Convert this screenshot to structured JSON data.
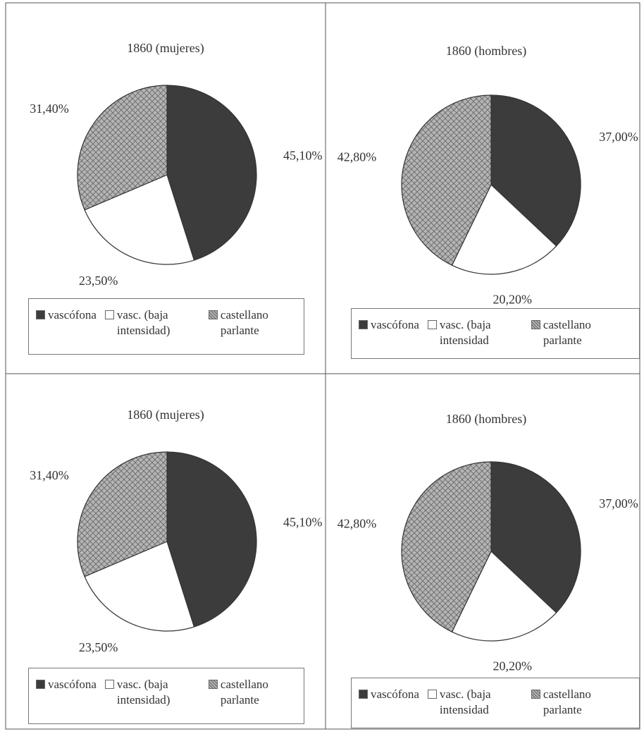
{
  "chart_data": [
    {
      "type": "pie",
      "title": "1860 (mujeres)",
      "categories": [
        "vascófona",
        "vasc. (baja intensidad)",
        "castellano parlante"
      ],
      "values": [
        45.1,
        23.5,
        31.4
      ],
      "value_labels": [
        "45,10%",
        "23,50%",
        "31,40%"
      ],
      "colors": [
        "#3c3c3c",
        "#ffffff",
        "#b4b4b4"
      ]
    },
    {
      "type": "pie",
      "title": "1860 (hombres)",
      "categories": [
        "vascófona",
        "vasc. (baja intensidad",
        "castellano parlante"
      ],
      "values": [
        37.0,
        20.2,
        42.8
      ],
      "value_labels": [
        "37,00%",
        "20,20%",
        "42,80%"
      ],
      "colors": [
        "#3c3c3c",
        "#ffffff",
        "#b4b4b4"
      ]
    },
    {
      "type": "pie",
      "title": "1860 (mujeres)",
      "categories": [
        "vascófona",
        "vasc. (baja intensidad)",
        "castellano parlante"
      ],
      "values": [
        45.1,
        23.5,
        31.4
      ],
      "value_labels": [
        "45,10%",
        "23,50%",
        "31,40%"
      ],
      "colors": [
        "#3c3c3c",
        "#ffffff",
        "#b4b4b4"
      ]
    },
    {
      "type": "pie",
      "title": "1860 (hombres)",
      "categories": [
        "vascófona",
        "vasc. (baja intensidad",
        "castellano parlante"
      ],
      "values": [
        37.0,
        20.2,
        42.8
      ],
      "value_labels": [
        "37,00%",
        "20,20%",
        "42,80%"
      ],
      "colors": [
        "#3c3c3c",
        "#ffffff",
        "#b4b4b4"
      ]
    }
  ]
}
